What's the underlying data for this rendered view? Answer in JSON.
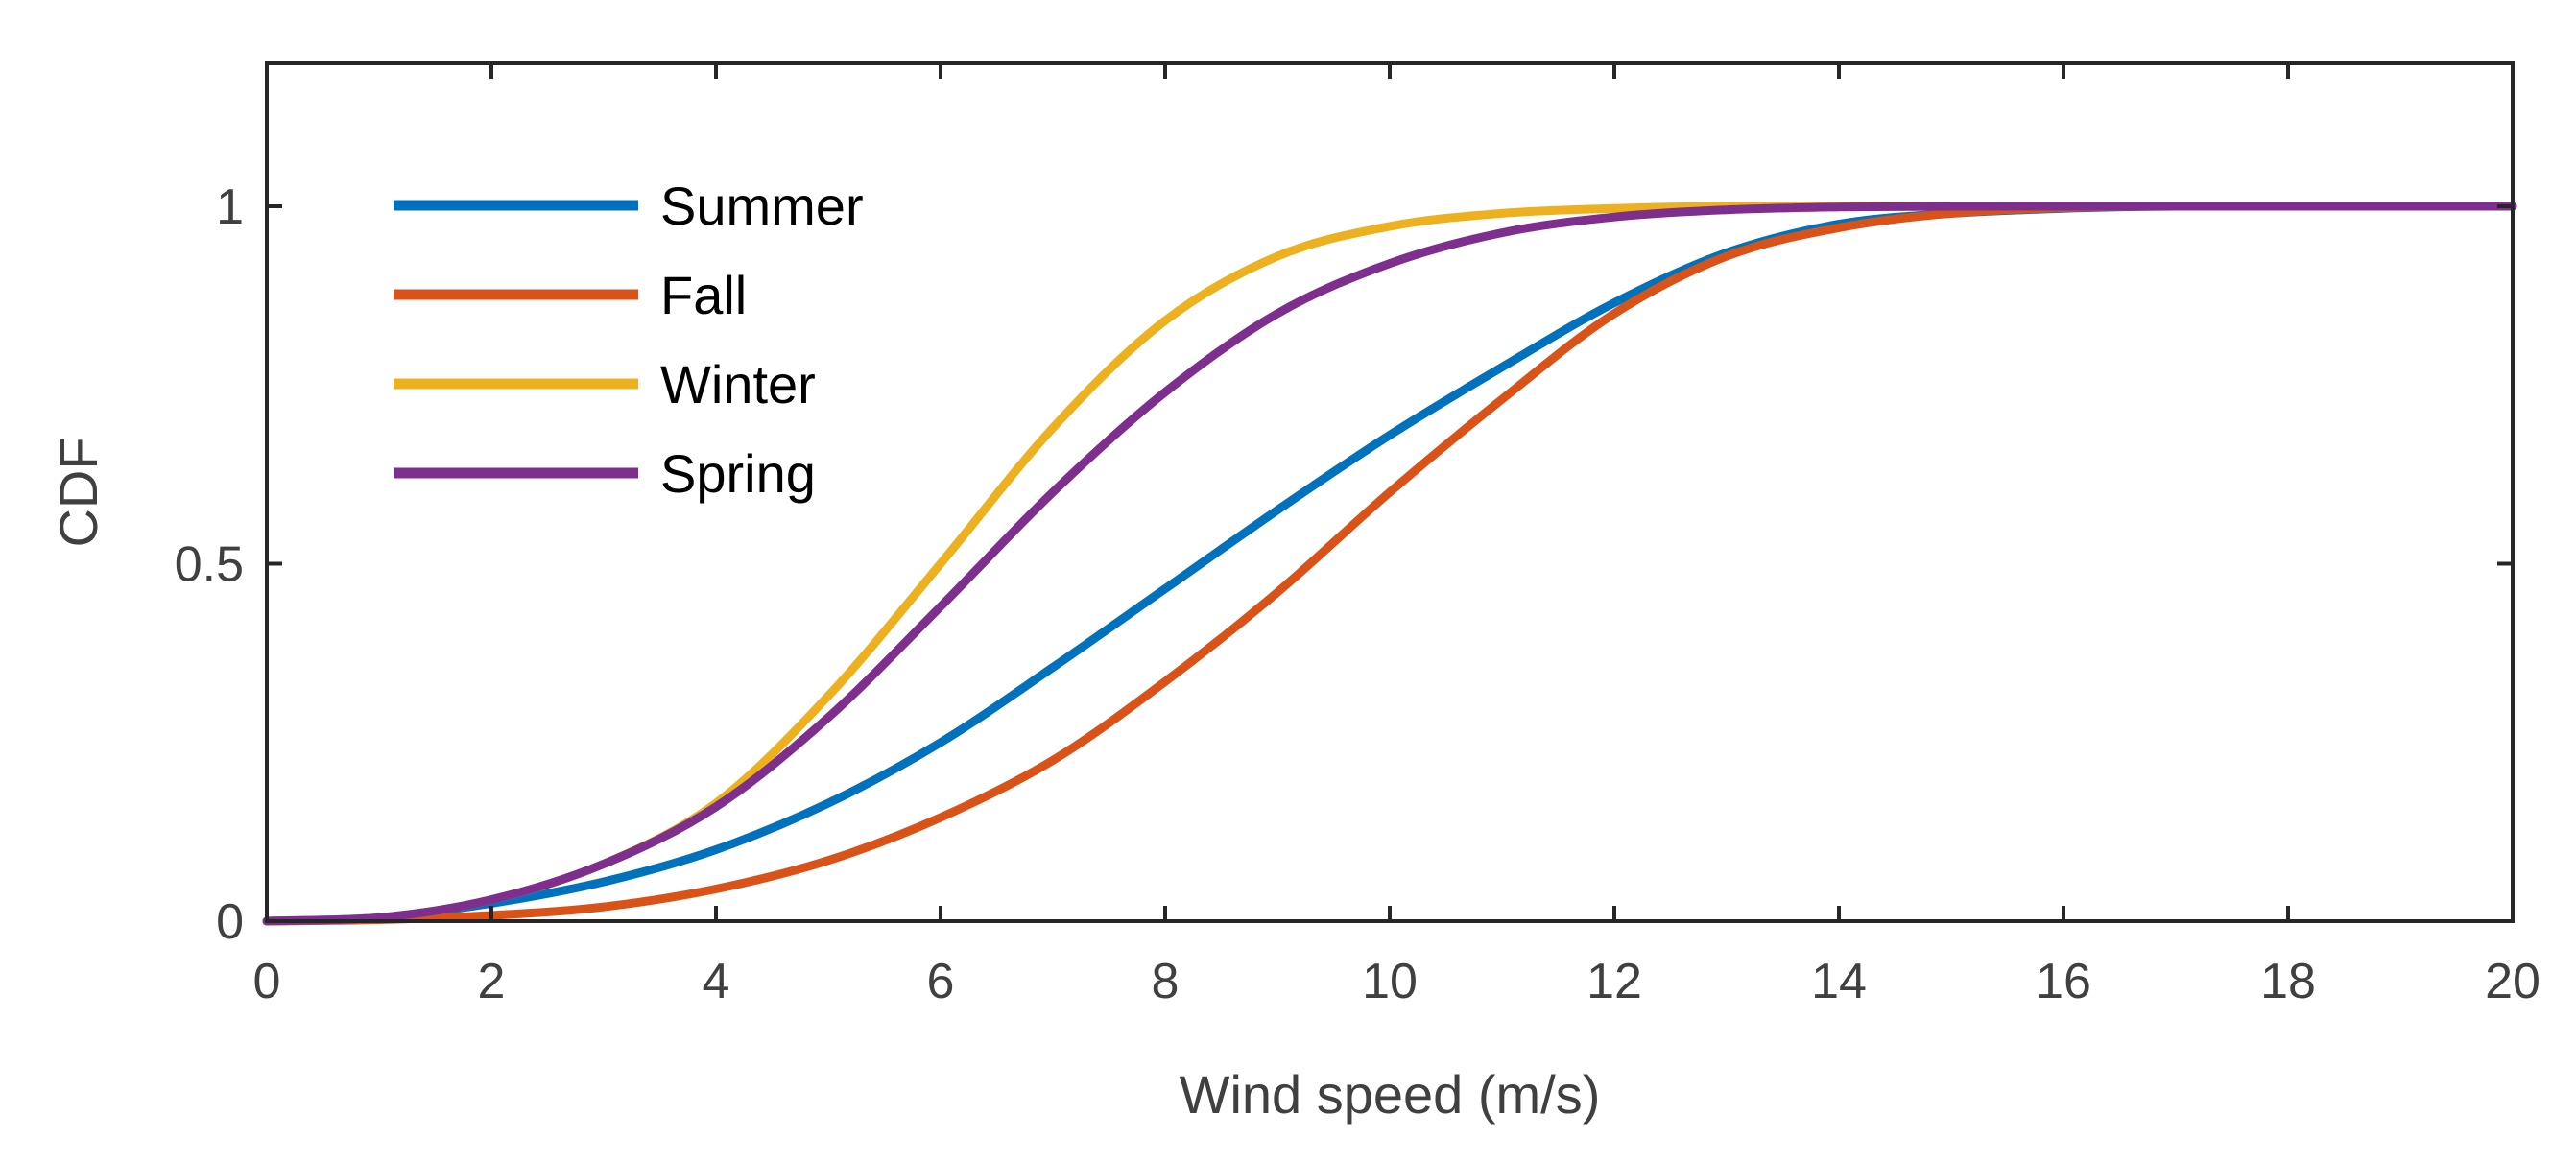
{
  "chart_data": {
    "type": "line",
    "xlabel": "Wind speed (m/s)",
    "ylabel": "CDF",
    "xlim": [
      0,
      20
    ],
    "ylim": [
      0,
      1.2
    ],
    "xticks": [
      0,
      2,
      4,
      6,
      8,
      10,
      12,
      14,
      16,
      18,
      20
    ],
    "yticks": [
      0,
      0.5,
      1
    ],
    "ytick_labels": [
      "0",
      "0.5",
      "1"
    ],
    "legend_position": "top-left",
    "grid": false,
    "x": [
      0,
      1,
      2,
      3,
      4,
      5,
      6,
      7,
      8,
      9,
      10,
      11,
      12,
      13,
      14,
      15,
      16,
      17,
      18,
      19,
      20
    ],
    "series": [
      {
        "name": "Summer",
        "color": "#0072BD",
        "values": [
          0,
          0.005,
          0.025,
          0.055,
          0.1,
          0.165,
          0.25,
          0.355,
          0.465,
          0.575,
          0.68,
          0.775,
          0.865,
          0.935,
          0.975,
          0.99,
          0.997,
          1,
          1,
          1,
          1
        ]
      },
      {
        "name": "Fall",
        "color": "#D95319",
        "values": [
          0,
          0.002,
          0.008,
          0.02,
          0.045,
          0.085,
          0.145,
          0.225,
          0.335,
          0.46,
          0.6,
          0.73,
          0.85,
          0.93,
          0.97,
          0.99,
          0.998,
          1,
          1,
          1,
          1
        ]
      },
      {
        "name": "Winter",
        "color": "#EDB120",
        "values": [
          0,
          0.005,
          0.03,
          0.08,
          0.165,
          0.315,
          0.5,
          0.69,
          0.84,
          0.93,
          0.972,
          0.99,
          0.997,
          1,
          1,
          1,
          1,
          1,
          1,
          1,
          1
        ]
      },
      {
        "name": "Spring",
        "color": "#7E2F8E",
        "values": [
          0,
          0.005,
          0.03,
          0.08,
          0.16,
          0.285,
          0.44,
          0.6,
          0.74,
          0.85,
          0.92,
          0.963,
          0.985,
          0.995,
          0.999,
          1,
          1,
          1,
          1,
          1,
          1
        ]
      }
    ]
  }
}
